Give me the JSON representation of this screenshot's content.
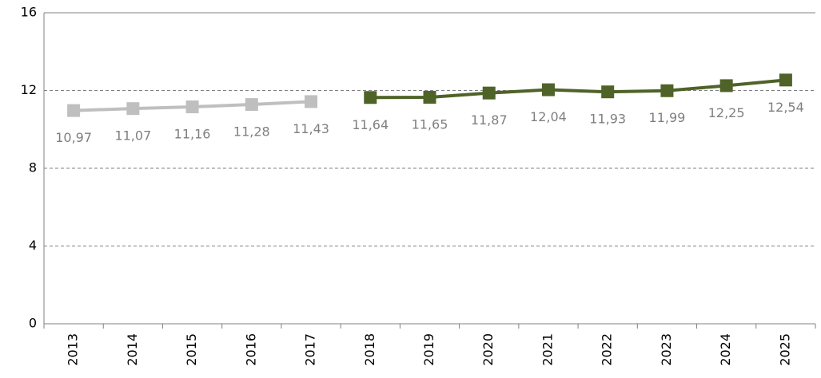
{
  "chart_data": {
    "type": "line",
    "categories": [
      "2013",
      "2014",
      "2015",
      "2016",
      "2017",
      "2018",
      "2019",
      "2020",
      "2021",
      "2022",
      "2023",
      "2024",
      "2025"
    ],
    "series": [
      {
        "color": "#bfbfbf",
        "values": [
          10.97,
          11.07,
          11.16,
          11.28,
          11.43,
          null,
          null,
          null,
          null,
          null,
          null,
          null,
          null
        ],
        "value_labels": [
          "10,97",
          "11,07",
          "11,16",
          "11,28",
          "11,43",
          null,
          null,
          null,
          null,
          null,
          null,
          null,
          null
        ]
      },
      {
        "color": "#4f6228",
        "values": [
          null,
          null,
          null,
          null,
          null,
          11.64,
          11.65,
          11.87,
          12.04,
          11.93,
          11.99,
          12.25,
          12.54
        ],
        "value_labels": [
          null,
          null,
          null,
          null,
          null,
          "11,64",
          "11,65",
          "11,87",
          "12,04",
          "11,93",
          "11,99",
          "12,25",
          "12,54"
        ]
      }
    ],
    "ylim": [
      0,
      16
    ],
    "yticks": [
      0,
      4,
      8,
      12,
      16
    ],
    "grid": true
  }
}
